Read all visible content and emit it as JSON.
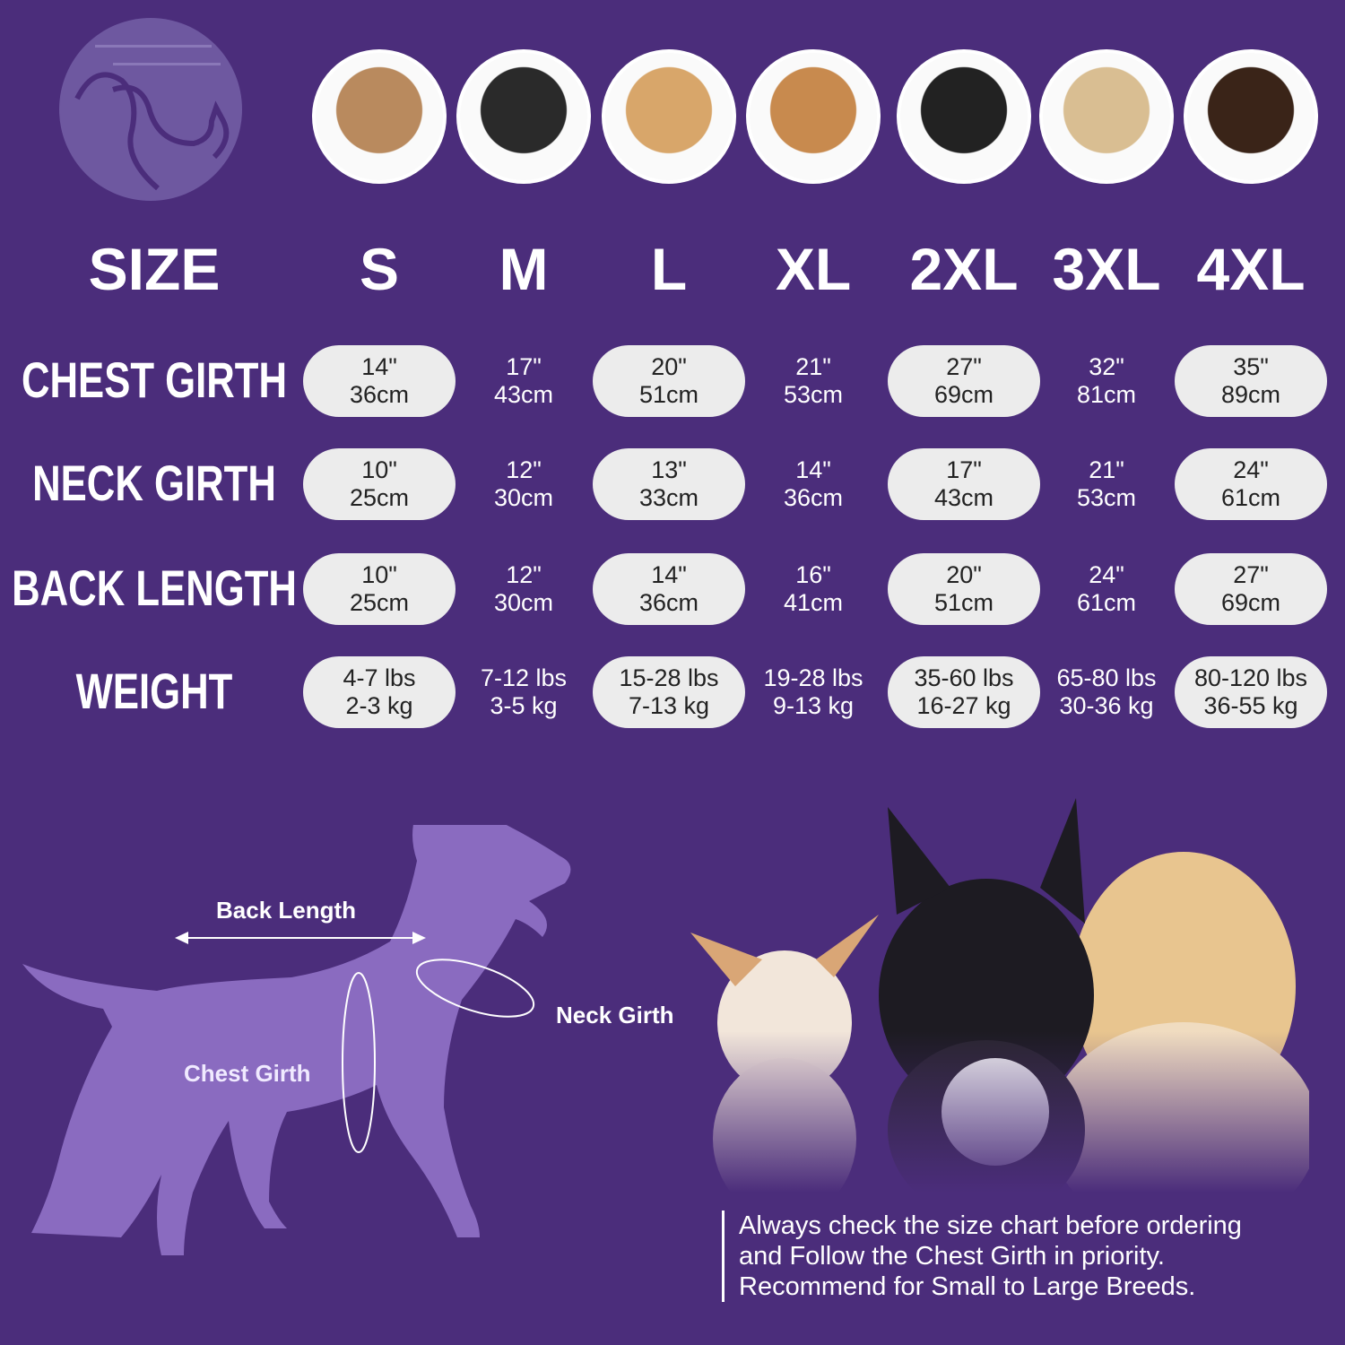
{
  "colors": {
    "background": "#4b2d7b",
    "pill": "#ececec",
    "silhouette": "#8a6bc0"
  },
  "breeds_icons": [
    "shih-tzu-photo",
    "boston-terrier-photo",
    "cocker-spaniel-photo",
    "beagle-photo",
    "border-collie-photo",
    "labrador-photo",
    "doberman-photo"
  ],
  "table": {
    "header_label": "SIZE",
    "sizes": [
      "S",
      "M",
      "L",
      "XL",
      "2XL",
      "3XL",
      "4XL"
    ],
    "rows": [
      {
        "label": "CHEST GIRTH",
        "values": [
          [
            "14\"",
            "36cm"
          ],
          [
            "17\"",
            "43cm"
          ],
          [
            "20\"",
            "51cm"
          ],
          [
            "21\"",
            "53cm"
          ],
          [
            "27\"",
            "69cm"
          ],
          [
            "32\"",
            "81cm"
          ],
          [
            "35\"",
            "89cm"
          ]
        ]
      },
      {
        "label": "NECK GIRTH",
        "values": [
          [
            "10\"",
            "25cm"
          ],
          [
            "12\"",
            "30cm"
          ],
          [
            "13\"",
            "33cm"
          ],
          [
            "14\"",
            "36cm"
          ],
          [
            "17\"",
            "43cm"
          ],
          [
            "21\"",
            "53cm"
          ],
          [
            "24\"",
            "61cm"
          ]
        ]
      },
      {
        "label": "BACK LENGTH",
        "values": [
          [
            "10\"",
            "25cm"
          ],
          [
            "12\"",
            "30cm"
          ],
          [
            "14\"",
            "36cm"
          ],
          [
            "16\"",
            "41cm"
          ],
          [
            "20\"",
            "51cm"
          ],
          [
            "24\"",
            "61cm"
          ],
          [
            "27\"",
            "69cm"
          ]
        ]
      },
      {
        "label": "WEIGHT",
        "values": [
          [
            "4-7 lbs",
            "2-3 kg"
          ],
          [
            "7-12 lbs",
            "3-5 kg"
          ],
          [
            "15-28 lbs",
            "7-13 kg"
          ],
          [
            "19-28 lbs",
            "9-13 kg"
          ],
          [
            "35-60 lbs",
            "16-27 kg"
          ],
          [
            "65-80 lbs",
            "30-36 kg"
          ],
          [
            "80-120 lbs",
            "36-55 kg"
          ]
        ]
      }
    ]
  },
  "diagram": {
    "back_length": "Back Length",
    "neck_girth": "Neck Girth",
    "chest_girth": "Chest Girth"
  },
  "note": [
    "Always check the size chart before ordering",
    "and Follow the Chest Girth in priority.",
    "Recommend for Small to Large Breeds."
  ]
}
